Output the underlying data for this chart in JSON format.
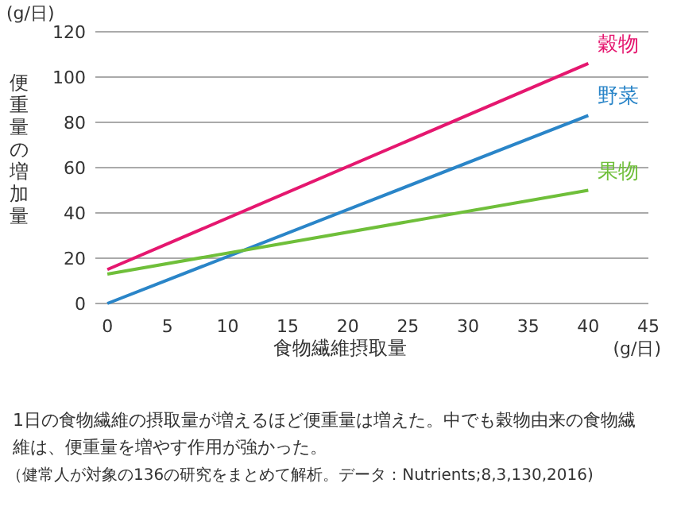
{
  "chart_data": {
    "type": "line",
    "xlabel": "食物繊維摂取量",
    "ylabel": "便重量の増加量",
    "x": [
      0,
      40
    ],
    "series": [
      {
        "name": "穀物",
        "color": "#e5176f",
        "values": [
          15,
          106
        ]
      },
      {
        "name": "野菜",
        "color": "#2a85c8",
        "values": [
          0,
          83
        ]
      },
      {
        "name": "果物",
        "color": "#6fbf3a",
        "values": [
          13,
          50
        ]
      }
    ],
    "xlim": [
      -1,
      45
    ],
    "xticks": [
      0,
      5,
      10,
      15,
      20,
      25,
      30,
      35,
      40,
      45
    ],
    "ylim": [
      0,
      120
    ],
    "yticks": [
      0,
      20,
      40,
      60,
      80,
      100,
      120
    ],
    "grid": "y",
    "marker": "none",
    "line_style": "solid",
    "annotations": [
      "(g/日)",
      "(g/日)",
      "1日の食物繊維の摂取量が増えるほど便重量は増えた。中でも穀物由来の食物繊維は、便重量を増やす作用が強かった。",
      "（健常人が対象の136の研究をまとめて解析。データ：Nutrients;8,3,130,2016)"
    ]
  }
}
